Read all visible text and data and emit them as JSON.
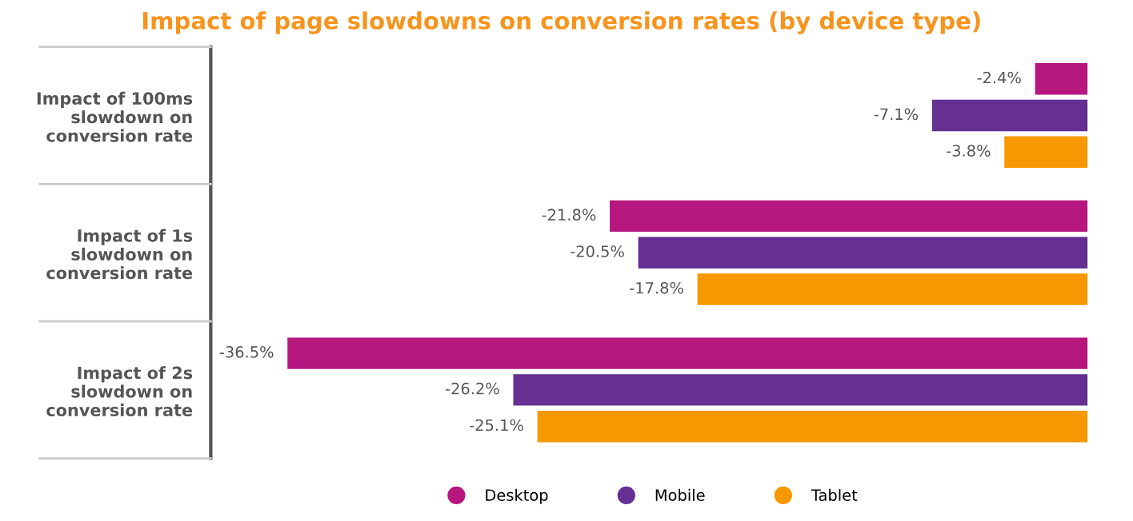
{
  "chart_data": {
    "type": "bar",
    "orientation": "horizontal",
    "title": "Impact of page slowdowns on conversion rates (by device type)",
    "categories": [
      "Impact of 100ms\nslowdown on\nconversion rate",
      "Impact of 1s\nslowdown on\nconversion rate",
      "Impact of 2s\nslowdown on\nconversion rate"
    ],
    "series": [
      {
        "name": "Desktop",
        "color": "#b5177f",
        "values": [
          -2.4,
          -21.8,
          -36.5
        ],
        "value_labels": [
          "-2.4%",
          "-21.8%",
          "-36.5%"
        ]
      },
      {
        "name": "Mobile",
        "color": "#653092",
        "values": [
          -7.1,
          -20.5,
          -26.2
        ],
        "value_labels": [
          "-7.1%",
          "-20.5%",
          "-26.2%"
        ]
      },
      {
        "name": "Tablet",
        "color": "#f79800",
        "values": [
          -3.8,
          -17.8,
          -25.1
        ],
        "value_labels": [
          "-3.8%",
          "-17.8%",
          "-25.1%"
        ]
      }
    ],
    "xlim": [
      -40,
      0
    ],
    "tick_labels": "y",
    "grid": false,
    "legend": "bottom",
    "marker": "circle"
  }
}
